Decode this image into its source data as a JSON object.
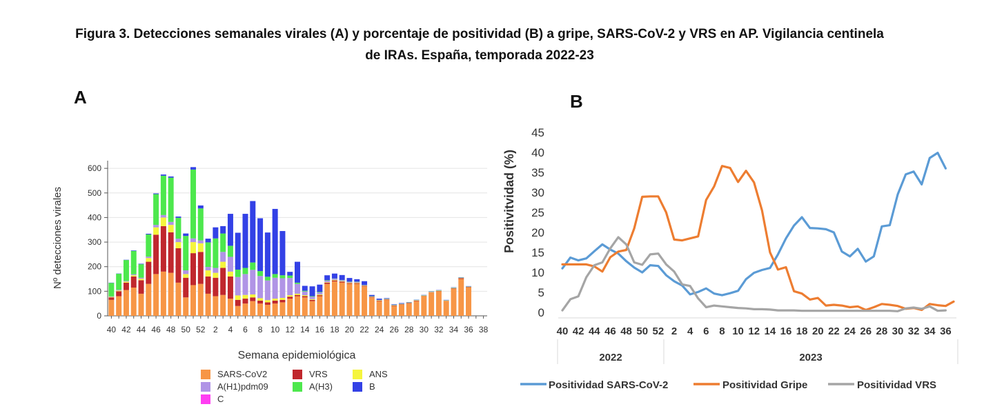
{
  "title": {
    "line1": "Figura 3. Detecciones semanales virales (A) y porcentaje de positividad (B) a gripe, SARS-CoV-2 y VRS en AP. Vigilancia centinela",
    "line2": "de IRAs.  España, temporada 2022-23"
  },
  "chart_data": [
    {
      "panel": "A",
      "type": "bar",
      "stacked": true,
      "title": "",
      "xlabel": "Semana epidemiológica",
      "ylabel": "Nº detecciones virales",
      "ylim": [
        0,
        620
      ],
      "yticks": [
        0,
        100,
        200,
        300,
        400,
        500,
        600
      ],
      "categories": [
        "40",
        "41",
        "42",
        "43",
        "44",
        "45",
        "46",
        "47",
        "48",
        "49",
        "50",
        "51",
        "52",
        "1",
        "2",
        "3",
        "4",
        "5",
        "6",
        "7",
        "8",
        "9",
        "10",
        "11",
        "12",
        "13",
        "14",
        "15",
        "16",
        "17",
        "18",
        "19",
        "20",
        "21",
        "22",
        "23",
        "24",
        "25",
        "26",
        "27",
        "28",
        "29",
        "30",
        "31",
        "32",
        "33",
        "34",
        "35",
        "36",
        "37",
        "38"
      ],
      "tick_labels": [
        "40",
        "42",
        "44",
        "46",
        "48",
        "50",
        "52",
        "2",
        "4",
        "6",
        "8",
        "10",
        "12",
        "14",
        "16",
        "18",
        "20",
        "22",
        "24",
        "26",
        "28",
        "30",
        "32",
        "34",
        "36",
        "38"
      ],
      "legend_position": "bottom",
      "series": [
        {
          "name": "SARS-CoV2",
          "color": "#f79646",
          "values": [
            65,
            80,
            105,
            115,
            90,
            130,
            170,
            180,
            175,
            135,
            75,
            125,
            130,
            90,
            80,
            85,
            70,
            40,
            50,
            60,
            50,
            45,
            50,
            55,
            70,
            80,
            75,
            60,
            80,
            130,
            140,
            135,
            130,
            130,
            120,
            75,
            60,
            65,
            40,
            45,
            50,
            60,
            80,
            95,
            100,
            60,
            110,
            150,
            115,
            0,
            0
          ]
        },
        {
          "name": "VRS",
          "color": "#c0272d",
          "values": [
            10,
            20,
            30,
            45,
            55,
            90,
            160,
            185,
            165,
            140,
            80,
            130,
            130,
            70,
            75,
            110,
            90,
            25,
            20,
            15,
            12,
            10,
            12,
            10,
            8,
            5,
            5,
            5,
            4,
            5,
            4,
            4,
            3,
            3,
            2,
            2,
            2,
            2,
            2,
            2,
            2,
            2,
            1,
            1,
            1,
            1,
            2,
            3,
            2,
            0,
            0
          ]
        },
        {
          "name": "ANS",
          "color": "#f5f53d",
          "values": [
            2,
            3,
            4,
            5,
            6,
            15,
            30,
            35,
            30,
            25,
            15,
            45,
            35,
            25,
            20,
            25,
            20,
            18,
            15,
            12,
            10,
            9,
            8,
            8,
            6,
            5,
            4,
            3,
            3,
            2,
            2,
            2,
            2,
            2,
            1,
            1,
            1,
            1,
            1,
            1,
            1,
            1,
            1,
            1,
            1,
            1,
            1,
            1,
            1,
            0,
            0
          ]
        },
        {
          "name": "A(H1)pdm09",
          "color": "#b094e6",
          "values": [
            2,
            3,
            3,
            4,
            4,
            6,
            10,
            10,
            12,
            14,
            15,
            15,
            12,
            14,
            20,
            40,
            60,
            75,
            85,
            100,
            90,
            80,
            85,
            80,
            70,
            40,
            15,
            10,
            8,
            6,
            5,
            4,
            3,
            3,
            2,
            1,
            1,
            1,
            1,
            1,
            1,
            1,
            1,
            1,
            1,
            1,
            1,
            1,
            1,
            0,
            0
          ]
        },
        {
          "name": "A(H3)",
          "color": "#4de84d",
          "values": [
            55,
            65,
            85,
            95,
            55,
            90,
            125,
            160,
            180,
            85,
            140,
            280,
            130,
            100,
            120,
            75,
            45,
            30,
            25,
            30,
            20,
            15,
            15,
            12,
            10,
            5,
            3,
            2,
            2,
            2,
            1,
            1,
            1,
            1,
            1,
            1,
            1,
            1,
            1,
            1,
            1,
            1,
            1,
            1,
            1,
            1,
            1,
            1,
            1,
            0,
            0
          ]
        },
        {
          "name": "B",
          "color": "#3341e6",
          "values": [
            1,
            1,
            1,
            2,
            2,
            3,
            3,
            5,
            5,
            5,
            10,
            10,
            12,
            15,
            45,
            30,
            130,
            150,
            220,
            250,
            215,
            180,
            265,
            180,
            15,
            85,
            20,
            40,
            30,
            20,
            20,
            20,
            15,
            10,
            15,
            5,
            5,
            2,
            2,
            2,
            1,
            1,
            1,
            1,
            1,
            1,
            1,
            1,
            1,
            0,
            0
          ]
        },
        {
          "name": "C",
          "color": "#ff3ef2",
          "values": [
            0,
            0,
            0,
            0,
            0,
            0,
            0,
            0,
            0,
            0,
            0,
            0,
            0,
            0,
            0,
            0,
            0,
            0,
            0,
            0,
            0,
            0,
            0,
            0,
            0,
            0,
            0,
            0,
            0,
            0,
            0,
            0,
            0,
            0,
            0,
            0,
            0,
            0,
            0,
            0,
            0,
            0,
            0,
            0,
            0,
            0,
            0,
            0,
            0,
            0,
            0
          ]
        }
      ]
    },
    {
      "panel": "B",
      "type": "line",
      "title": "",
      "xlabel": "",
      "ylabel": "Positivitvidad (%)",
      "ylim": [
        0,
        45
      ],
      "yticks": [
        0,
        5,
        10,
        15,
        20,
        25,
        30,
        35,
        40,
        45
      ],
      "tick_labels": [
        "40",
        "42",
        "44",
        "46",
        "48",
        "50",
        "52",
        "2",
        "4",
        "6",
        "8",
        "10",
        "12",
        "14",
        "16",
        "18",
        "20",
        "22",
        "24",
        "26",
        "28",
        "30",
        "32",
        "34",
        "36"
      ],
      "year_labels": [
        "2022",
        "2023"
      ],
      "legend_position": "bottom",
      "series": [
        {
          "name": "Positividad SARS-CoV-2",
          "color": "#5b9bd5",
          "values": [
            11,
            13.7,
            13,
            13.5,
            15.3,
            17,
            15.7,
            14.7,
            12.8,
            11.2,
            10,
            11.8,
            11.6,
            9.3,
            7.8,
            6.7,
            4.5,
            5.1,
            6,
            4.7,
            4.3,
            4.8,
            5.4,
            8.3,
            9.9,
            10.6,
            11.1,
            14.5,
            18.5,
            21.7,
            23.8,
            21.1,
            21,
            20.8,
            20,
            15.2,
            14,
            15.9,
            12.7,
            14,
            21.5,
            21.8,
            29.5,
            34.5,
            35.2,
            32,
            38.6,
            39.9,
            36
          ]
        },
        {
          "name": "Positividad Gripe",
          "color": "#ed7d31",
          "values": [
            12,
            12,
            12,
            12,
            11.5,
            10.2,
            13.8,
            15.2,
            15.6,
            21,
            28.9,
            29,
            29,
            25,
            18.2,
            18,
            18.5,
            19,
            28.1,
            31.5,
            36.6,
            36.1,
            32.6,
            35.4,
            32.5,
            25.5,
            15,
            10.7,
            11.3,
            5.3,
            4.7,
            3.2,
            3.6,
            1.7,
            1.9,
            1.7,
            1.3,
            1.5,
            0.6,
            1.3,
            2.1,
            1.9,
            1.6,
            0.9,
            1.1,
            0.6,
            2.1,
            1.8,
            1.6,
            2.7
          ]
        },
        {
          "name": "Positividad VRS",
          "color": "#a5a5a5",
          "values": [
            0.5,
            3.3,
            4,
            8.8,
            11.8,
            12.5,
            16,
            18.8,
            17,
            12.5,
            11.9,
            14.5,
            14.7,
            12,
            10.2,
            7,
            6.6,
            3.5,
            1.3,
            1.7,
            1.5,
            1.3,
            1.1,
            1,
            0.8,
            0.8,
            0.7,
            0.5,
            0.5,
            0.5,
            0.4,
            0.4,
            0.4,
            0.4,
            0.4,
            0.4,
            0.4,
            0.4,
            0.4,
            0.4,
            0.4,
            0.4,
            0.3,
            1,
            1.2,
            0.9,
            1.5,
            0.4,
            0.5
          ]
        }
      ]
    }
  ]
}
